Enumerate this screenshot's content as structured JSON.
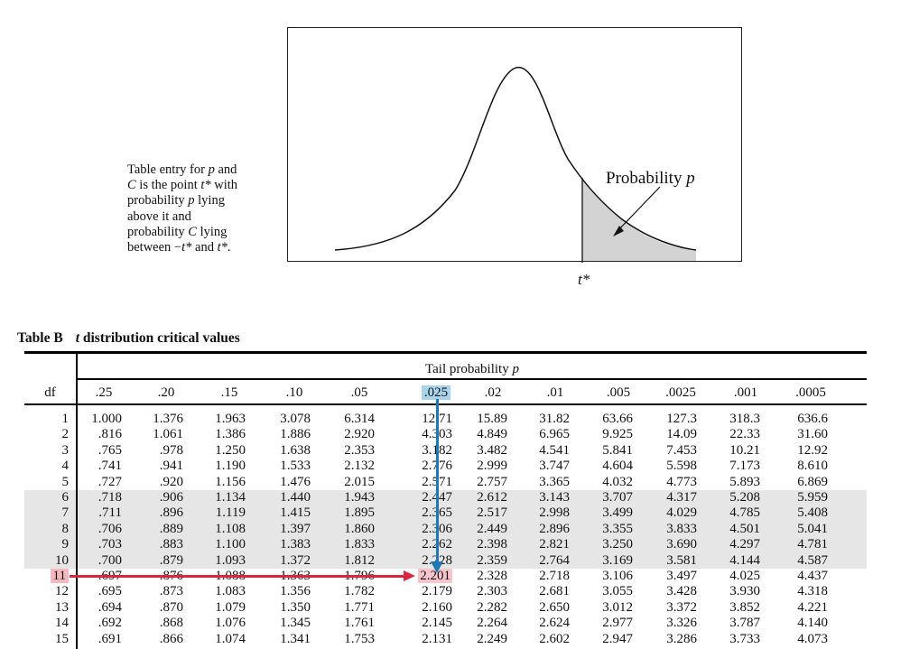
{
  "caption": {
    "lines": [
      [
        "Table entry for ",
        "p",
        " and"
      ],
      [
        "C",
        " is the point ",
        "t*",
        " with"
      ],
      [
        "probability ",
        "p",
        " lying"
      ],
      [
        "above it and"
      ],
      [
        "probability ",
        "C",
        " lying"
      ],
      [
        "between −",
        "t*",
        " and ",
        "t*",
        "."
      ]
    ]
  },
  "figure": {
    "probability_label": "Probability",
    "probability_symbol": "p",
    "t_star_label": "t*",
    "shade_color": "#d3d3d3"
  },
  "table": {
    "title_prefix": "Table B",
    "title_t": "t",
    "title_rest": " distribution critical values",
    "tail_label": "Tail probability",
    "tail_symbol": "p",
    "df_header": "df",
    "columns": [
      ".25",
      ".20",
      ".15",
      ".10",
      ".05",
      ".025",
      ".02",
      ".01",
      ".005",
      ".0025",
      ".001",
      ".0005"
    ],
    "highlighted_column": ".025",
    "highlighted_df": "11",
    "highlighted_value": "2.201",
    "colors": {
      "column_highlight": "#a8d4ec",
      "row_highlight": "#f4b8c0",
      "blue_arrow": "#1f78b4",
      "red_arrow": "#d7263d",
      "shaded_band": "#e6e6e6"
    },
    "rows": [
      {
        "df": "1",
        "values": [
          "1.000",
          "1.376",
          "1.963",
          "3.078",
          "6.314",
          "12.71",
          "15.89",
          "31.82",
          "63.66",
          "127.3",
          "318.3",
          "636.6"
        ]
      },
      {
        "df": "2",
        "values": [
          ".816",
          "1.061",
          "1.386",
          "1.886",
          "2.920",
          "4.303",
          "4.849",
          "6.965",
          "9.925",
          "14.09",
          "22.33",
          "31.60"
        ]
      },
      {
        "df": "3",
        "values": [
          ".765",
          ".978",
          "1.250",
          "1.638",
          "2.353",
          "3.182",
          "3.482",
          "4.541",
          "5.841",
          "7.453",
          "10.21",
          "12.92"
        ]
      },
      {
        "df": "4",
        "values": [
          ".741",
          ".941",
          "1.190",
          "1.533",
          "2.132",
          "2.776",
          "2.999",
          "3.747",
          "4.604",
          "5.598",
          "7.173",
          "8.610"
        ]
      },
      {
        "df": "5",
        "values": [
          ".727",
          ".920",
          "1.156",
          "1.476",
          "2.015",
          "2.571",
          "2.757",
          "3.365",
          "4.032",
          "4.773",
          "5.893",
          "6.869"
        ]
      },
      {
        "df": "6",
        "values": [
          ".718",
          ".906",
          "1.134",
          "1.440",
          "1.943",
          "2.447",
          "2.612",
          "3.143",
          "3.707",
          "4.317",
          "5.208",
          "5.959"
        ]
      },
      {
        "df": "7",
        "values": [
          ".711",
          ".896",
          "1.119",
          "1.415",
          "1.895",
          "2.365",
          "2.517",
          "2.998",
          "3.499",
          "4.029",
          "4.785",
          "5.408"
        ]
      },
      {
        "df": "8",
        "values": [
          ".706",
          ".889",
          "1.108",
          "1.397",
          "1.860",
          "2.306",
          "2.449",
          "2.896",
          "3.355",
          "3.833",
          "4.501",
          "5.041"
        ]
      },
      {
        "df": "9",
        "values": [
          ".703",
          ".883",
          "1.100",
          "1.383",
          "1.833",
          "2.262",
          "2.398",
          "2.821",
          "3.250",
          "3.690",
          "4.297",
          "4.781"
        ]
      },
      {
        "df": "10",
        "values": [
          ".700",
          ".879",
          "1.093",
          "1.372",
          "1.812",
          "2.228",
          "2.359",
          "2.764",
          "3.169",
          "3.581",
          "4.144",
          "4.587"
        ]
      },
      {
        "df": "11",
        "values": [
          ".697",
          ".876",
          "1.088",
          "1.363",
          "1.796",
          "2.201",
          "2.328",
          "2.718",
          "3.106",
          "3.497",
          "4.025",
          "4.437"
        ]
      },
      {
        "df": "12",
        "values": [
          ".695",
          ".873",
          "1.083",
          "1.356",
          "1.782",
          "2.179",
          "2.303",
          "2.681",
          "3.055",
          "3.428",
          "3.930",
          "4.318"
        ]
      },
      {
        "df": "13",
        "values": [
          ".694",
          ".870",
          "1.079",
          "1.350",
          "1.771",
          "2.160",
          "2.282",
          "2.650",
          "3.012",
          "3.372",
          "3.852",
          "4.221"
        ]
      },
      {
        "df": "14",
        "values": [
          ".692",
          ".868",
          "1.076",
          "1.345",
          "1.761",
          "2.145",
          "2.264",
          "2.624",
          "2.977",
          "3.326",
          "3.787",
          "4.140"
        ]
      },
      {
        "df": "15",
        "values": [
          ".691",
          ".866",
          "1.074",
          "1.341",
          "1.753",
          "2.131",
          "2.249",
          "2.602",
          "2.947",
          "3.286",
          "3.733",
          "4.073"
        ]
      }
    ]
  }
}
